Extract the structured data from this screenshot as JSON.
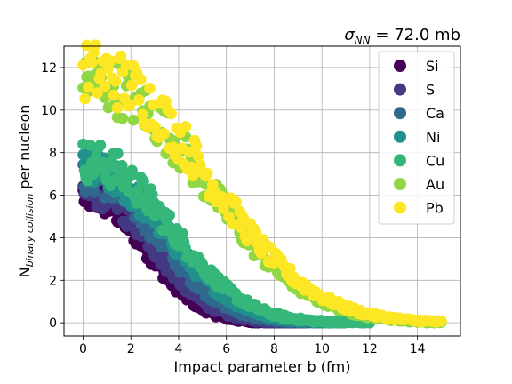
{
  "chart_data": {
    "type": "scatter",
    "title": "σ_NN = 72.0 mb",
    "title_parts": {
      "sigma": "σ",
      "sub": "NN",
      "rest": " = 72.0 mb"
    },
    "xlabel": "Impact parameter b (fm)",
    "ylabel_parts": {
      "main": "N",
      "sub": "binary collision",
      "rest": " per nucleon"
    },
    "xlim": [
      -0.8,
      15.8
    ],
    "ylim": [
      -0.62,
      13.0
    ],
    "xticks": [
      "0",
      "2",
      "4",
      "6",
      "8",
      "10",
      "12",
      "14"
    ],
    "yticks": [
      "0",
      "2",
      "4",
      "6",
      "8",
      "10",
      "12"
    ],
    "grid": true,
    "legend_position": "top-right",
    "series": [
      {
        "name": "Si",
        "color": "#440154",
        "y0": 6.0,
        "R": 3.5,
        "bmax": 9.0
      },
      {
        "name": "S",
        "color": "#443983",
        "y0": 6.3,
        "R": 3.8,
        "bmax": 9.5
      },
      {
        "name": "Ca",
        "color": "#31688e",
        "y0": 6.9,
        "R": 4.2,
        "bmax": 10.5
      },
      {
        "name": "Ni",
        "color": "#21918c",
        "y0": 7.2,
        "R": 4.6,
        "bmax": 11.0
      },
      {
        "name": "Cu",
        "color": "#35b779",
        "y0": 7.6,
        "R": 4.9,
        "bmax": 12.0
      },
      {
        "name": "Au",
        "color": "#90d743",
        "y0": 11.4,
        "R": 6.7,
        "bmax": 15.0
      },
      {
        "name": "Pb",
        "color": "#fde725",
        "y0": 11.8,
        "R": 6.9,
        "bmax": 15.0
      }
    ]
  }
}
